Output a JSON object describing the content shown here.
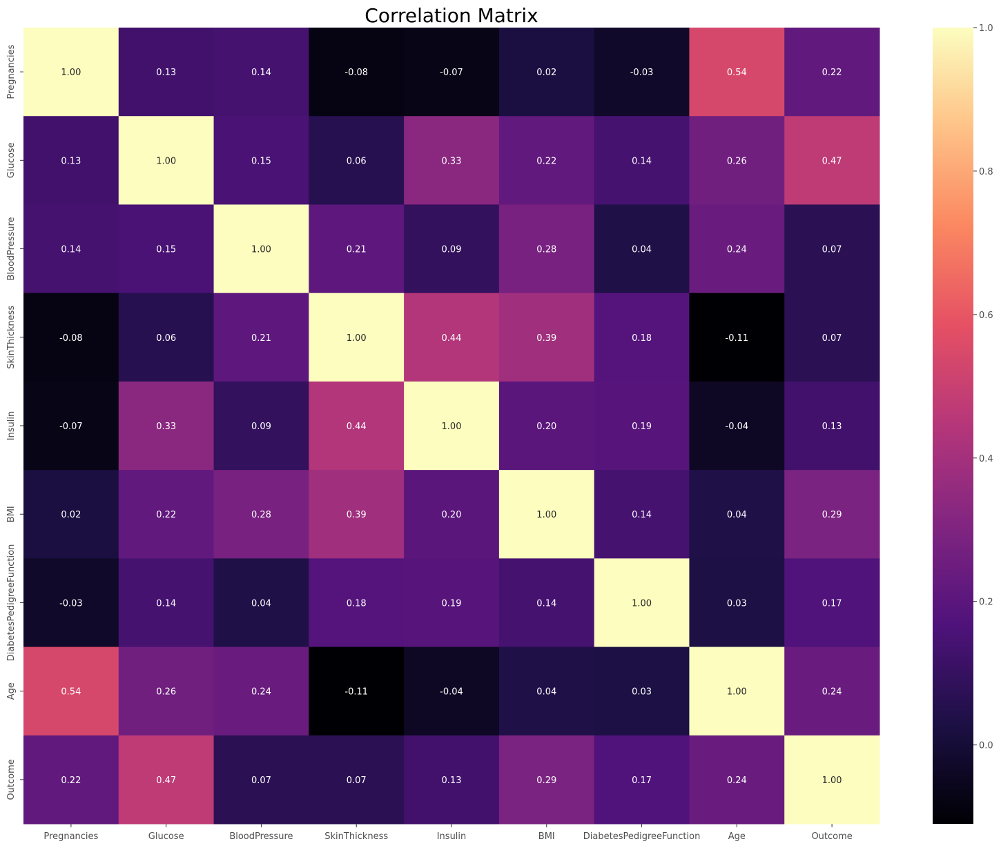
{
  "chart_data": {
    "type": "heatmap",
    "title": "Correlation Matrix",
    "xlabel": "",
    "ylabel": "",
    "colormap": "magma",
    "color_range": [
      -0.11,
      1.0
    ],
    "colorbar_ticks": [
      {
        "value": 0.0,
        "label": "0.0"
      },
      {
        "value": 0.2,
        "label": "0.2"
      },
      {
        "value": 0.4,
        "label": "0.4"
      },
      {
        "value": 0.6,
        "label": "0.6"
      },
      {
        "value": 0.8,
        "label": "0.8"
      },
      {
        "value": 1.0,
        "label": "1.0"
      }
    ],
    "labels": [
      "Pregnancies",
      "Glucose",
      "BloodPressure",
      "SkinThickness",
      "Insulin",
      "BMI",
      "DiabetesPedigreeFunction",
      "Age",
      "Outcome"
    ],
    "values": [
      [
        1.0,
        0.13,
        0.14,
        -0.08,
        -0.07,
        0.02,
        -0.03,
        0.54,
        0.22
      ],
      [
        0.13,
        1.0,
        0.15,
        0.06,
        0.33,
        0.22,
        0.14,
        0.26,
        0.47
      ],
      [
        0.14,
        0.15,
        1.0,
        0.21,
        0.09,
        0.28,
        0.04,
        0.24,
        0.07
      ],
      [
        -0.08,
        0.06,
        0.21,
        1.0,
        0.44,
        0.39,
        0.18,
        -0.11,
        0.07
      ],
      [
        -0.07,
        0.33,
        0.09,
        0.44,
        1.0,
        0.2,
        0.19,
        -0.04,
        0.13
      ],
      [
        0.02,
        0.22,
        0.28,
        0.39,
        0.2,
        1.0,
        0.14,
        0.04,
        0.29
      ],
      [
        -0.03,
        0.14,
        0.04,
        0.18,
        0.19,
        0.14,
        1.0,
        0.03,
        0.17
      ],
      [
        0.54,
        0.26,
        0.24,
        -0.11,
        -0.04,
        0.04,
        0.03,
        1.0,
        0.24
      ],
      [
        0.22,
        0.47,
        0.07,
        0.07,
        0.13,
        0.29,
        0.17,
        0.24,
        1.0
      ]
    ]
  }
}
